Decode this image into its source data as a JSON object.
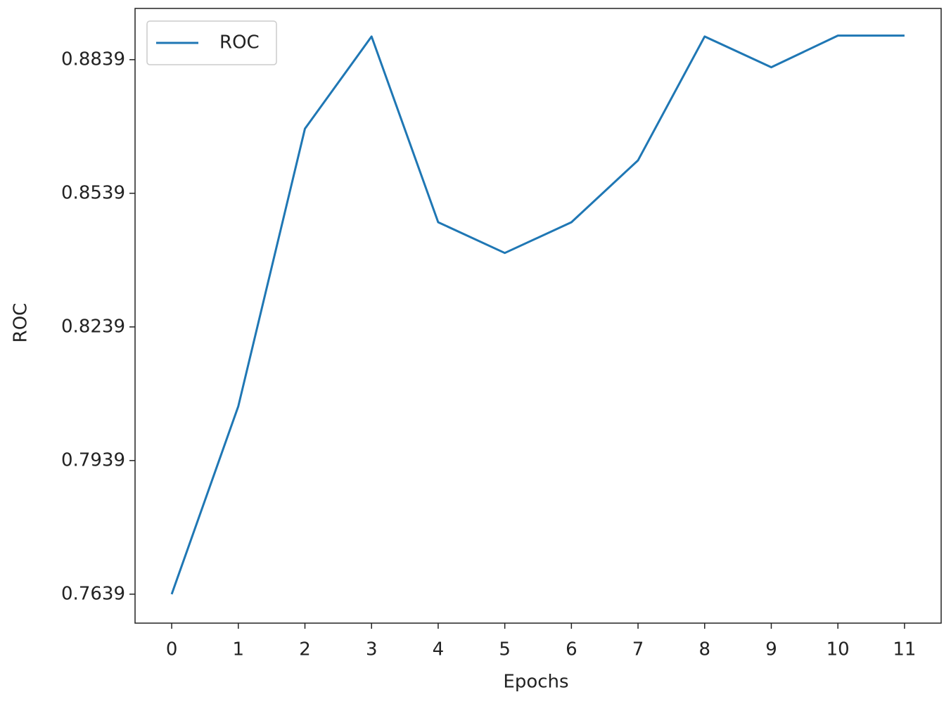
{
  "chart_data": {
    "type": "line",
    "xlabel": "Epochs",
    "ylabel": "ROC",
    "x": [
      0,
      1,
      2,
      3,
      4,
      5,
      6,
      7,
      8,
      9,
      10,
      11
    ],
    "series": [
      {
        "name": "ROC",
        "color": "#1f77b4",
        "values": [
          0.7639,
          0.8061,
          0.8684,
          0.8891,
          0.8474,
          0.8405,
          0.8474,
          0.8613,
          0.8891,
          0.8822,
          0.8893,
          0.8893
        ]
      }
    ],
    "xlim": [
      -0.55,
      11.55
    ],
    "xticks": [
      0,
      1,
      2,
      3,
      4,
      5,
      6,
      7,
      8,
      9,
      10,
      11
    ],
    "ylim": [
      0.7574,
      0.8954
    ],
    "yticks": [
      0.7639,
      0.7939,
      0.8239,
      0.8539,
      0.8839
    ],
    "legend": "upper left",
    "grid": false
  }
}
